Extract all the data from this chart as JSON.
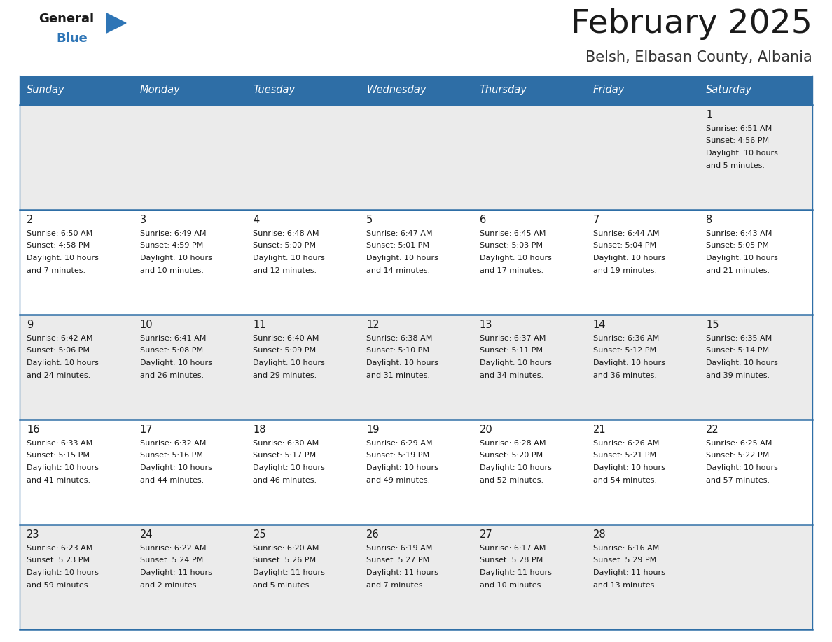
{
  "title": "February 2025",
  "subtitle": "Belsh, Elbasan County, Albania",
  "header_bg_color": "#2E6EA6",
  "header_text_color": "#FFFFFF",
  "days_of_week": [
    "Sunday",
    "Monday",
    "Tuesday",
    "Wednesday",
    "Thursday",
    "Friday",
    "Saturday"
  ],
  "title_color": "#1a1a1a",
  "subtitle_color": "#333333",
  "cell_bg_light": "#EBEBEB",
  "cell_bg_white": "#FFFFFF",
  "grid_line_color": "#2E6EA6",
  "day_number_color": "#1a1a1a",
  "info_text_color": "#1a1a1a",
  "calendar": [
    [
      null,
      null,
      null,
      null,
      null,
      null,
      {
        "day": 1,
        "sunrise": "6:51 AM",
        "sunset": "4:56 PM",
        "daylight": "10 hours\nand 5 minutes."
      }
    ],
    [
      {
        "day": 2,
        "sunrise": "6:50 AM",
        "sunset": "4:58 PM",
        "daylight": "10 hours\nand 7 minutes."
      },
      {
        "day": 3,
        "sunrise": "6:49 AM",
        "sunset": "4:59 PM",
        "daylight": "10 hours\nand 10 minutes."
      },
      {
        "day": 4,
        "sunrise": "6:48 AM",
        "sunset": "5:00 PM",
        "daylight": "10 hours\nand 12 minutes."
      },
      {
        "day": 5,
        "sunrise": "6:47 AM",
        "sunset": "5:01 PM",
        "daylight": "10 hours\nand 14 minutes."
      },
      {
        "day": 6,
        "sunrise": "6:45 AM",
        "sunset": "5:03 PM",
        "daylight": "10 hours\nand 17 minutes."
      },
      {
        "day": 7,
        "sunrise": "6:44 AM",
        "sunset": "5:04 PM",
        "daylight": "10 hours\nand 19 minutes."
      },
      {
        "day": 8,
        "sunrise": "6:43 AM",
        "sunset": "5:05 PM",
        "daylight": "10 hours\nand 21 minutes."
      }
    ],
    [
      {
        "day": 9,
        "sunrise": "6:42 AM",
        "sunset": "5:06 PM",
        "daylight": "10 hours\nand 24 minutes."
      },
      {
        "day": 10,
        "sunrise": "6:41 AM",
        "sunset": "5:08 PM",
        "daylight": "10 hours\nand 26 minutes."
      },
      {
        "day": 11,
        "sunrise": "6:40 AM",
        "sunset": "5:09 PM",
        "daylight": "10 hours\nand 29 minutes."
      },
      {
        "day": 12,
        "sunrise": "6:38 AM",
        "sunset": "5:10 PM",
        "daylight": "10 hours\nand 31 minutes."
      },
      {
        "day": 13,
        "sunrise": "6:37 AM",
        "sunset": "5:11 PM",
        "daylight": "10 hours\nand 34 minutes."
      },
      {
        "day": 14,
        "sunrise": "6:36 AM",
        "sunset": "5:12 PM",
        "daylight": "10 hours\nand 36 minutes."
      },
      {
        "day": 15,
        "sunrise": "6:35 AM",
        "sunset": "5:14 PM",
        "daylight": "10 hours\nand 39 minutes."
      }
    ],
    [
      {
        "day": 16,
        "sunrise": "6:33 AM",
        "sunset": "5:15 PM",
        "daylight": "10 hours\nand 41 minutes."
      },
      {
        "day": 17,
        "sunrise": "6:32 AM",
        "sunset": "5:16 PM",
        "daylight": "10 hours\nand 44 minutes."
      },
      {
        "day": 18,
        "sunrise": "6:30 AM",
        "sunset": "5:17 PM",
        "daylight": "10 hours\nand 46 minutes."
      },
      {
        "day": 19,
        "sunrise": "6:29 AM",
        "sunset": "5:19 PM",
        "daylight": "10 hours\nand 49 minutes."
      },
      {
        "day": 20,
        "sunrise": "6:28 AM",
        "sunset": "5:20 PM",
        "daylight": "10 hours\nand 52 minutes."
      },
      {
        "day": 21,
        "sunrise": "6:26 AM",
        "sunset": "5:21 PM",
        "daylight": "10 hours\nand 54 minutes."
      },
      {
        "day": 22,
        "sunrise": "6:25 AM",
        "sunset": "5:22 PM",
        "daylight": "10 hours\nand 57 minutes."
      }
    ],
    [
      {
        "day": 23,
        "sunrise": "6:23 AM",
        "sunset": "5:23 PM",
        "daylight": "10 hours\nand 59 minutes."
      },
      {
        "day": 24,
        "sunrise": "6:22 AM",
        "sunset": "5:24 PM",
        "daylight": "11 hours\nand 2 minutes."
      },
      {
        "day": 25,
        "sunrise": "6:20 AM",
        "sunset": "5:26 PM",
        "daylight": "11 hours\nand 5 minutes."
      },
      {
        "day": 26,
        "sunrise": "6:19 AM",
        "sunset": "5:27 PM",
        "daylight": "11 hours\nand 7 minutes."
      },
      {
        "day": 27,
        "sunrise": "6:17 AM",
        "sunset": "5:28 PM",
        "daylight": "11 hours\nand 10 minutes."
      },
      {
        "day": 28,
        "sunrise": "6:16 AM",
        "sunset": "5:29 PM",
        "daylight": "11 hours\nand 13 minutes."
      },
      null
    ]
  ],
  "logo_general_color": "#1a1a1a",
  "logo_blue_color": "#2E75B6",
  "logo_triangle_color": "#2E75B6",
  "fig_width": 11.88,
  "fig_height": 9.18
}
